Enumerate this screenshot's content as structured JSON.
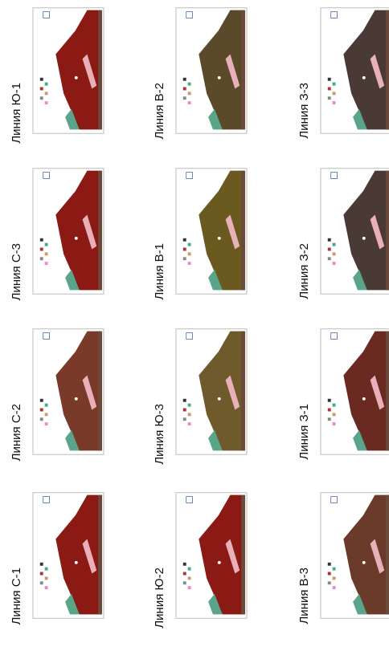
{
  "panels": [
    {
      "label": "Линия С-1"
    },
    {
      "label": "Линия С-2"
    },
    {
      "label": "Линия С-3"
    },
    {
      "label": "Линия Ю-1"
    },
    {
      "label": "Линия Ю-2"
    },
    {
      "label": "Линия Ю-3"
    },
    {
      "label": "Линия В-1"
    },
    {
      "label": "Линия В-2"
    },
    {
      "label": "Линия В-3"
    },
    {
      "label": "Линия З-1"
    },
    {
      "label": "Линия З-2"
    },
    {
      "label": "Линия З-3"
    }
  ]
}
